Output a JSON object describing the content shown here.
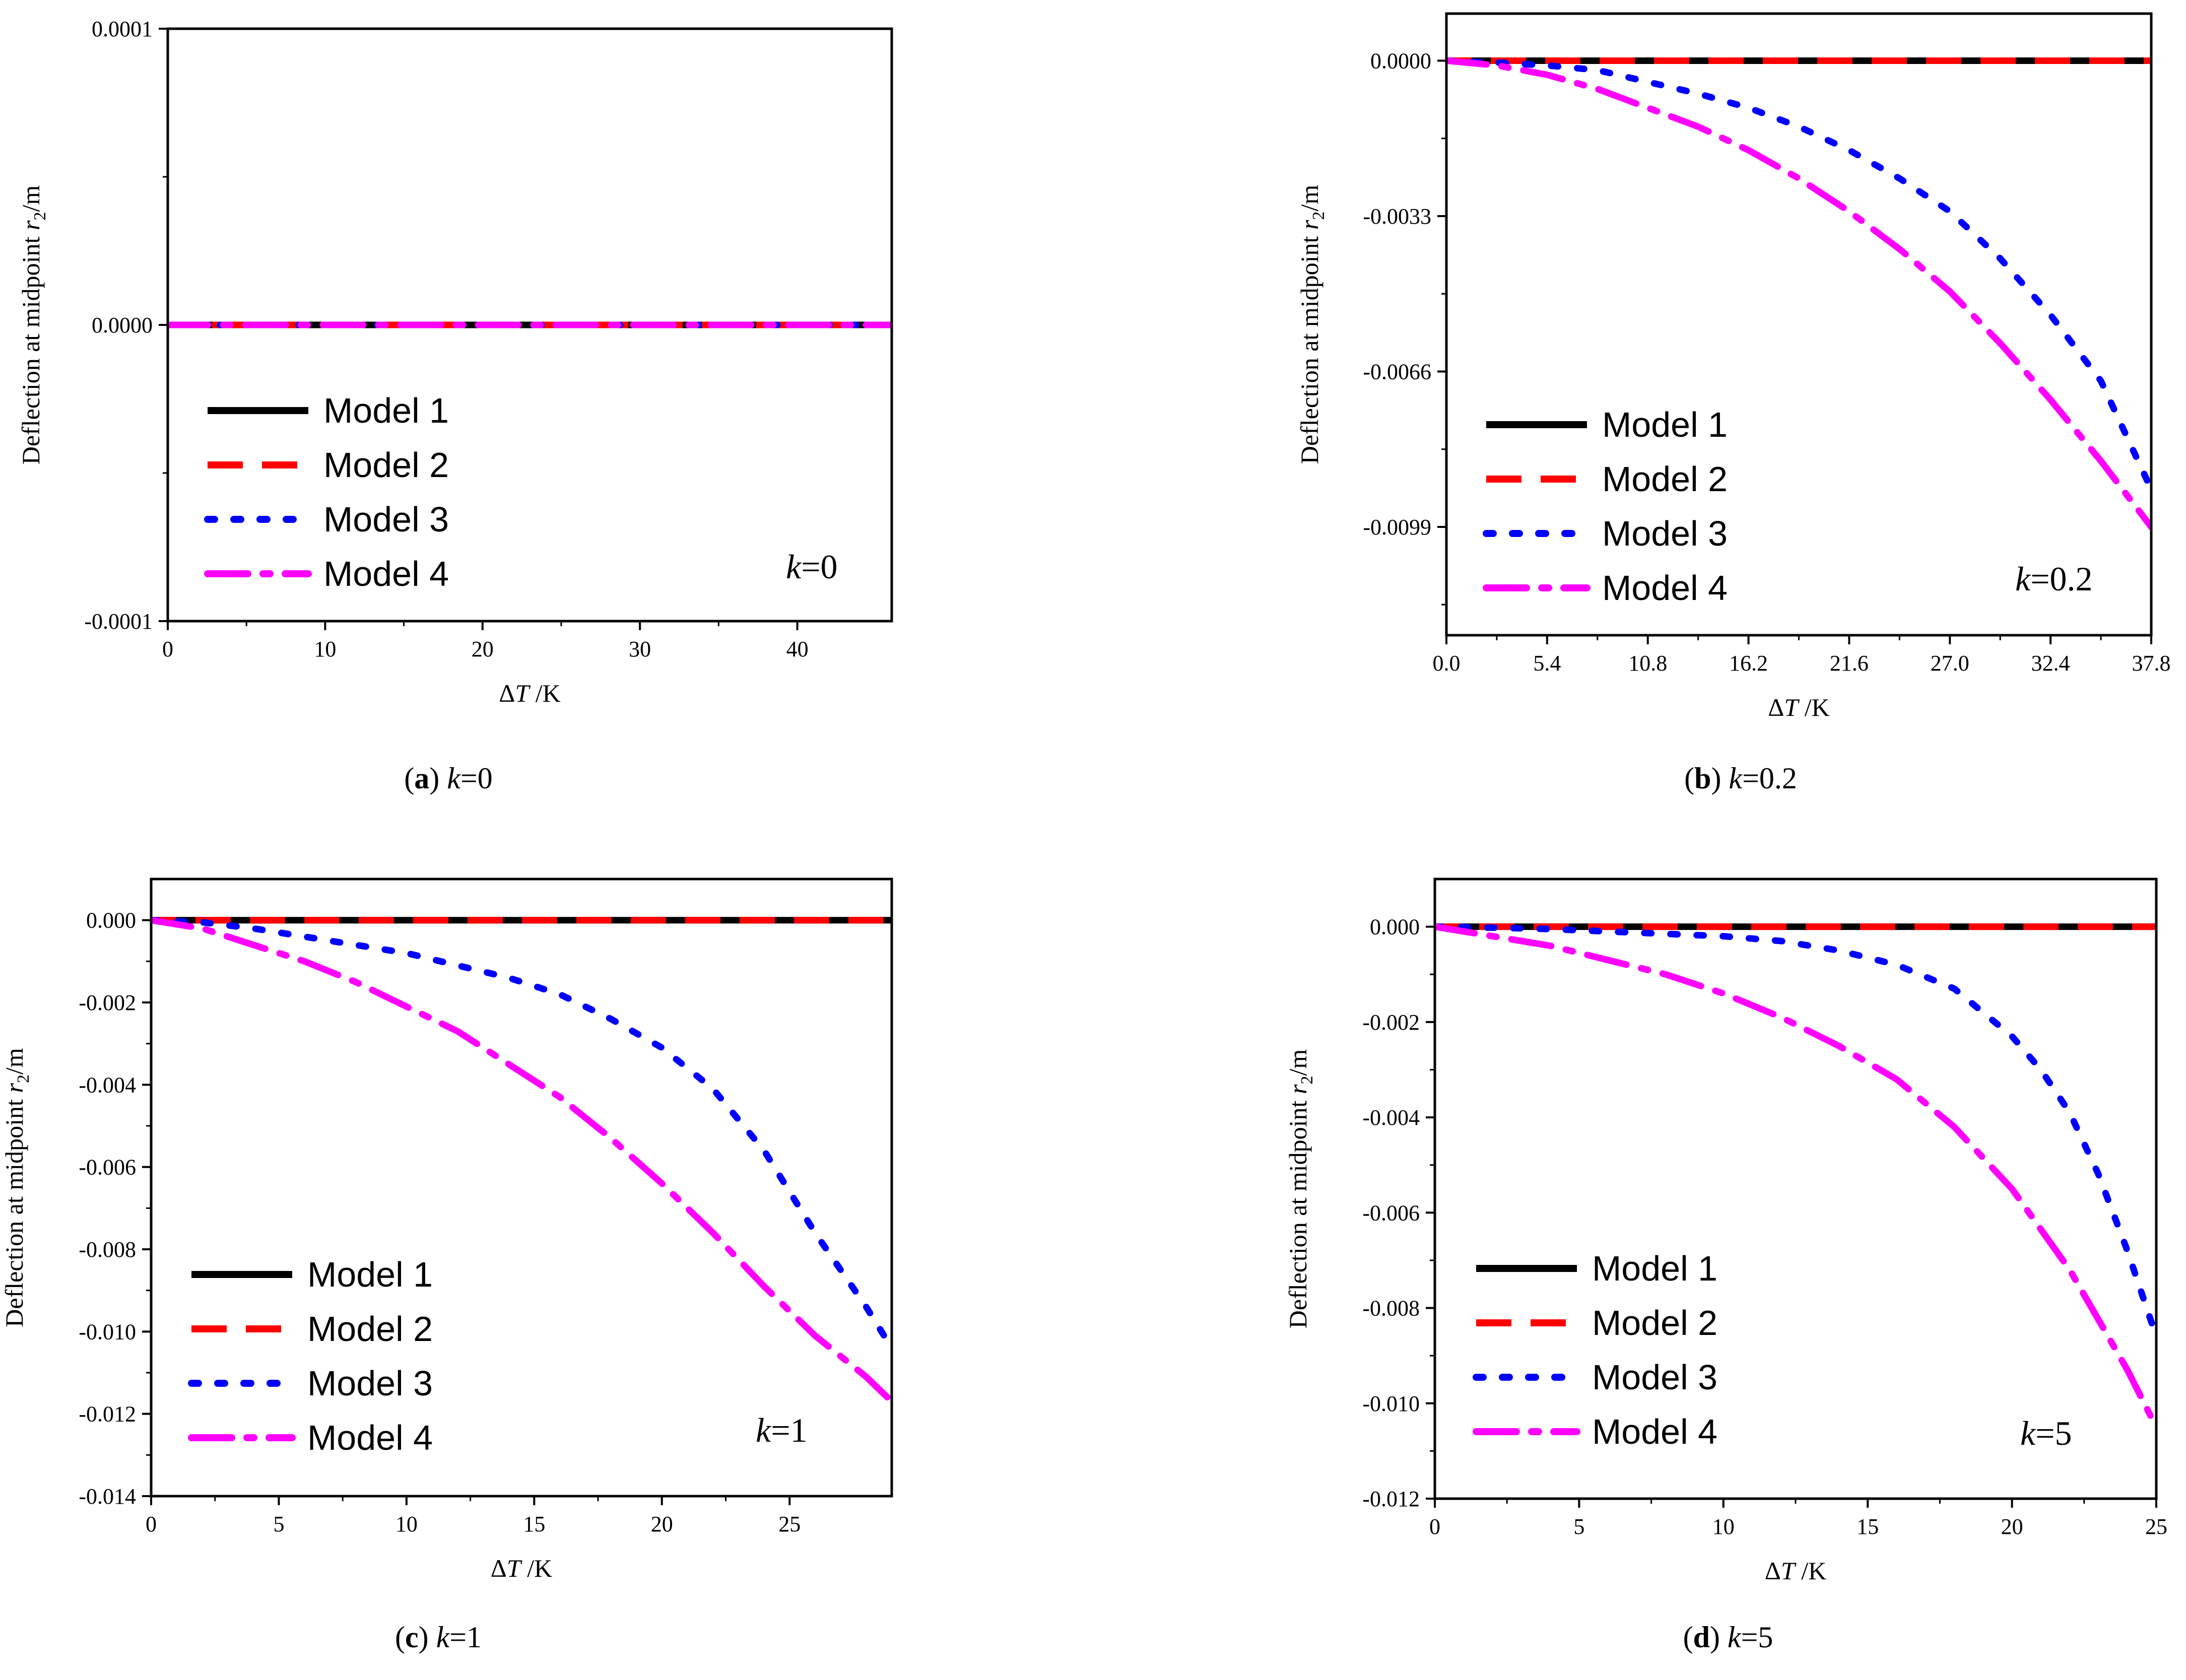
{
  "chart_data": [
    {
      "type": "line",
      "panel": "a",
      "caption": {
        "letter": "(a)",
        "text": "k=0"
      },
      "annotation": "k=0",
      "xlabel": "ΔT /K",
      "ylabel": "Deflection at midpoint r2/m",
      "xlim": [
        0,
        46
      ],
      "ylim": [
        -0.0001,
        0.0001
      ],
      "xticks": [
        0,
        10,
        20,
        30,
        40
      ],
      "xtick_labels": [
        "0",
        "10",
        "20",
        "30",
        "40"
      ],
      "yticks": [
        0.0001,
        0.0,
        -0.0001
      ],
      "ytick_labels": [
        "0.0001",
        "0.0000",
        "-0.0001"
      ],
      "yminor": [
        5e-05,
        -5e-05
      ],
      "legend_position": "lower-left",
      "series": [
        {
          "name": "Model 1",
          "color": "#000000",
          "style": "solid",
          "x": [
            0,
            46
          ],
          "values": [
            0,
            0
          ]
        },
        {
          "name": "Model 2",
          "color": "#ff0000",
          "style": "dash",
          "x": [
            0,
            46
          ],
          "values": [
            0,
            0
          ]
        },
        {
          "name": "Model 3",
          "color": "#0000ff",
          "style": "dot",
          "x": [
            0,
            46
          ],
          "values": [
            0,
            0
          ]
        },
        {
          "name": "Model 4",
          "color": "#ff00ff",
          "style": "dashdot",
          "x": [
            0,
            46
          ],
          "values": [
            0,
            0
          ]
        }
      ]
    },
    {
      "type": "line",
      "panel": "b",
      "caption": {
        "letter": "(b)",
        "text": "k=0.2"
      },
      "annotation": "k=0.2",
      "xlabel": "ΔT /K",
      "ylabel": "Deflection at midpoint r2/m",
      "xlim": [
        0,
        37.8
      ],
      "ylim": [
        -0.0122,
        0.001
      ],
      "xticks": [
        0,
        5.4,
        10.8,
        16.2,
        21.6,
        27.0,
        32.4,
        37.8
      ],
      "xtick_labels": [
        "0.0",
        "5.4",
        "10.8",
        "16.2",
        "21.6",
        "27.0",
        "32.4",
        "37.8"
      ],
      "yticks": [
        0.0,
        -0.0033,
        -0.0066,
        -0.0099
      ],
      "ytick_labels": [
        "0.0000",
        "-0.0033",
        "-0.0066",
        "-0.0099"
      ],
      "yminor": [
        -0.00165,
        -0.00495,
        -0.00825,
        -0.01155
      ],
      "legend_position": "lower-left",
      "series": [
        {
          "name": "Model 1",
          "color": "#000000",
          "style": "solid",
          "x": [
            0,
            37.8
          ],
          "values": [
            0,
            0
          ]
        },
        {
          "name": "Model 2",
          "color": "#ff0000",
          "style": "dash",
          "x": [
            0,
            37.8
          ],
          "values": [
            0,
            0
          ]
        },
        {
          "name": "Model 3",
          "color": "#0000ff",
          "style": "dot",
          "x": [
            0,
            2.7,
            5.4,
            8.1,
            10.8,
            13.5,
            16.2,
            18.9,
            21.6,
            24.3,
            27.0,
            29.7,
            32.4,
            35.1,
            37.8
          ],
          "values": [
            0,
            -4e-05,
            -0.0001,
            -0.0002,
            -0.00045,
            -0.0007,
            -0.001,
            -0.0014,
            -0.0019,
            -0.0025,
            -0.0032,
            -0.0042,
            -0.0054,
            -0.0068,
            -0.0091
          ]
        },
        {
          "name": "Model 4",
          "color": "#ff00ff",
          "style": "dashdot",
          "x": [
            0,
            2.7,
            5.4,
            8.1,
            10.8,
            13.5,
            16.2,
            18.9,
            21.6,
            24.3,
            27.0,
            29.7,
            32.4,
            35.1,
            37.8
          ],
          "values": [
            0,
            -0.0001,
            -0.0003,
            -0.0006,
            -0.001,
            -0.0014,
            -0.0019,
            -0.0025,
            -0.0032,
            -0.004,
            -0.0049,
            -0.006,
            -0.0072,
            -0.0085,
            -0.0099
          ]
        }
      ]
    },
    {
      "type": "line",
      "panel": "c",
      "caption": {
        "letter": "(c)",
        "text": "k=1"
      },
      "annotation": "k=1",
      "xlabel": "ΔT /K",
      "ylabel": "Deflection at midpoint r2/m",
      "xlim": [
        0,
        29
      ],
      "ylim": [
        -0.014,
        0.001
      ],
      "xticks": [
        0,
        5,
        10,
        15,
        20,
        25
      ],
      "xtick_labels": [
        "0",
        "5",
        "10",
        "15",
        "20",
        "25"
      ],
      "yticks": [
        0.0,
        -0.002,
        -0.004,
        -0.006,
        -0.008,
        -0.01,
        -0.012,
        -0.014
      ],
      "ytick_labels": [
        "0.000",
        "-0.002",
        "-0.004",
        "-0.006",
        "-0.008",
        "-0.010",
        "-0.012",
        "-0.014"
      ],
      "yminor": [
        -0.001,
        -0.003,
        -0.005,
        -0.007,
        -0.009,
        -0.011,
        -0.013
      ],
      "legend_position": "lower-left",
      "series": [
        {
          "name": "Model 1",
          "color": "#000000",
          "style": "solid",
          "x": [
            0,
            29
          ],
          "values": [
            0,
            0
          ]
        },
        {
          "name": "Model 2",
          "color": "#ff0000",
          "style": "dash",
          "x": [
            0,
            29
          ],
          "values": [
            0,
            0
          ]
        },
        {
          "name": "Model 3",
          "color": "#0000ff",
          "style": "dot",
          "x": [
            0,
            2,
            4,
            6,
            8,
            10,
            12,
            14,
            16,
            18,
            20,
            22,
            24,
            26,
            28,
            29
          ],
          "values": [
            0,
            -5e-05,
            -0.0002,
            -0.0004,
            -0.0006,
            -0.0008,
            -0.0011,
            -0.0014,
            -0.0018,
            -0.0024,
            -0.0031,
            -0.0041,
            -0.0056,
            -0.0076,
            -0.0094,
            -0.0104
          ]
        },
        {
          "name": "Model 4",
          "color": "#ff00ff",
          "style": "dashdot",
          "x": [
            0,
            2,
            4,
            6,
            8,
            10,
            12,
            14,
            16,
            18,
            20,
            22,
            24,
            26,
            28,
            29
          ],
          "values": [
            0,
            -0.0002,
            -0.0006,
            -0.001,
            -0.0015,
            -0.0021,
            -0.0027,
            -0.0035,
            -0.0043,
            -0.0053,
            -0.0064,
            -0.0076,
            -0.0089,
            -0.0101,
            -0.0111,
            -0.0117
          ]
        }
      ]
    },
    {
      "type": "line",
      "panel": "d",
      "caption": {
        "letter": "(d)",
        "text": "k=5"
      },
      "annotation": "k=5",
      "xlabel": "ΔT /K",
      "ylabel": "Deflection at midpoint r2/m",
      "xlim": [
        0,
        25
      ],
      "ylim": [
        -0.012,
        0.001
      ],
      "xticks": [
        0,
        5,
        10,
        15,
        20,
        25
      ],
      "xtick_labels": [
        "0",
        "5",
        "10",
        "15",
        "20",
        "25"
      ],
      "yticks": [
        0.0,
        -0.002,
        -0.004,
        -0.006,
        -0.008,
        -0.01,
        -0.012
      ],
      "ytick_labels": [
        "0.000",
        "-0.002",
        "-0.004",
        "-0.006",
        "-0.008",
        "-0.010",
        "-0.012"
      ],
      "yminor": [
        -0.001,
        -0.003,
        -0.005,
        -0.007,
        -0.009,
        -0.011
      ],
      "legend_position": "lower-left",
      "series": [
        {
          "name": "Model 1",
          "color": "#000000",
          "style": "solid",
          "x": [
            0,
            25
          ],
          "values": [
            0,
            0
          ]
        },
        {
          "name": "Model 2",
          "color": "#ff0000",
          "style": "dash",
          "x": [
            0,
            25
          ],
          "values": [
            0,
            0
          ]
        },
        {
          "name": "Model 3",
          "color": "#0000ff",
          "style": "dot",
          "x": [
            0,
            2,
            4,
            6,
            8,
            10,
            12,
            14,
            16,
            18,
            20,
            21,
            22,
            23,
            24,
            25
          ],
          "values": [
            0,
            -2e-05,
            -5e-05,
            -0.0001,
            -0.00015,
            -0.0002,
            -0.0003,
            -0.0005,
            -0.0008,
            -0.0013,
            -0.0023,
            -0.003,
            -0.0039,
            -0.0052,
            -0.0068,
            -0.0086
          ]
        },
        {
          "name": "Model 4",
          "color": "#ff00ff",
          "style": "dashdot",
          "x": [
            0,
            2,
            4,
            6,
            8,
            10,
            12,
            14,
            16,
            18,
            20,
            22,
            24,
            25
          ],
          "values": [
            0,
            -0.0002,
            -0.0004,
            -0.0007,
            -0.001,
            -0.0014,
            -0.0019,
            -0.0025,
            -0.0032,
            -0.0042,
            -0.0055,
            -0.0072,
            -0.0093,
            -0.0105
          ]
        }
      ]
    }
  ]
}
